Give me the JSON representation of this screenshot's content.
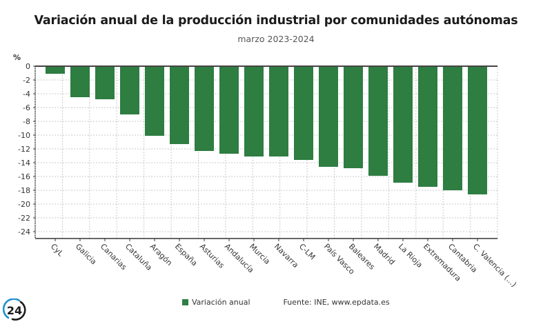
{
  "header": {
    "title": "Variación anual de la producción industrial por comunidades autónomas",
    "subtitle": "marzo 2023-2024"
  },
  "legend": {
    "label": "Variación anual",
    "source": "Fuente: INE, www.epdata.es"
  },
  "logo": {
    "text": "24",
    "icon": "europa-press-24-logo"
  },
  "colors": {
    "bar": "#2e7d41",
    "grid": "#c8c8c8",
    "axis": "#333333"
  },
  "chart_data": {
    "type": "bar",
    "title": "Variación anual de la producción industrial por comunidades autónomas",
    "subtitle": "marzo 2023-2024",
    "xlabel": "",
    "ylabel": "%",
    "ylim": [
      -25,
      0
    ],
    "yticks": [
      0,
      -2,
      -4,
      -6,
      -8,
      -10,
      -12,
      -14,
      -16,
      -18,
      -20,
      -22,
      -24
    ],
    "grid": true,
    "legend_position": "bottom",
    "categories": [
      "CyL",
      "Galicia",
      "Canarias",
      "Cataluña",
      "Aragón",
      "España",
      "Asturias",
      "Andalucía",
      "Murcia",
      "Navarra",
      "C-LM",
      "País Vasco",
      "Baleares",
      "Madrid",
      "La Rioja",
      "Extremadura",
      "Cantabria",
      "C. Valencia (...)"
    ],
    "series": [
      {
        "name": "Variación anual",
        "values": [
          -1.1,
          -4.5,
          -4.8,
          -7.0,
          -10.1,
          -11.3,
          -12.3,
          -12.7,
          -13.1,
          -13.1,
          -13.6,
          -14.6,
          -14.8,
          -15.9,
          -16.9,
          -17.5,
          -18.0,
          -18.6
        ]
      }
    ],
    "source": "Fuente: INE, www.epdata.es"
  }
}
